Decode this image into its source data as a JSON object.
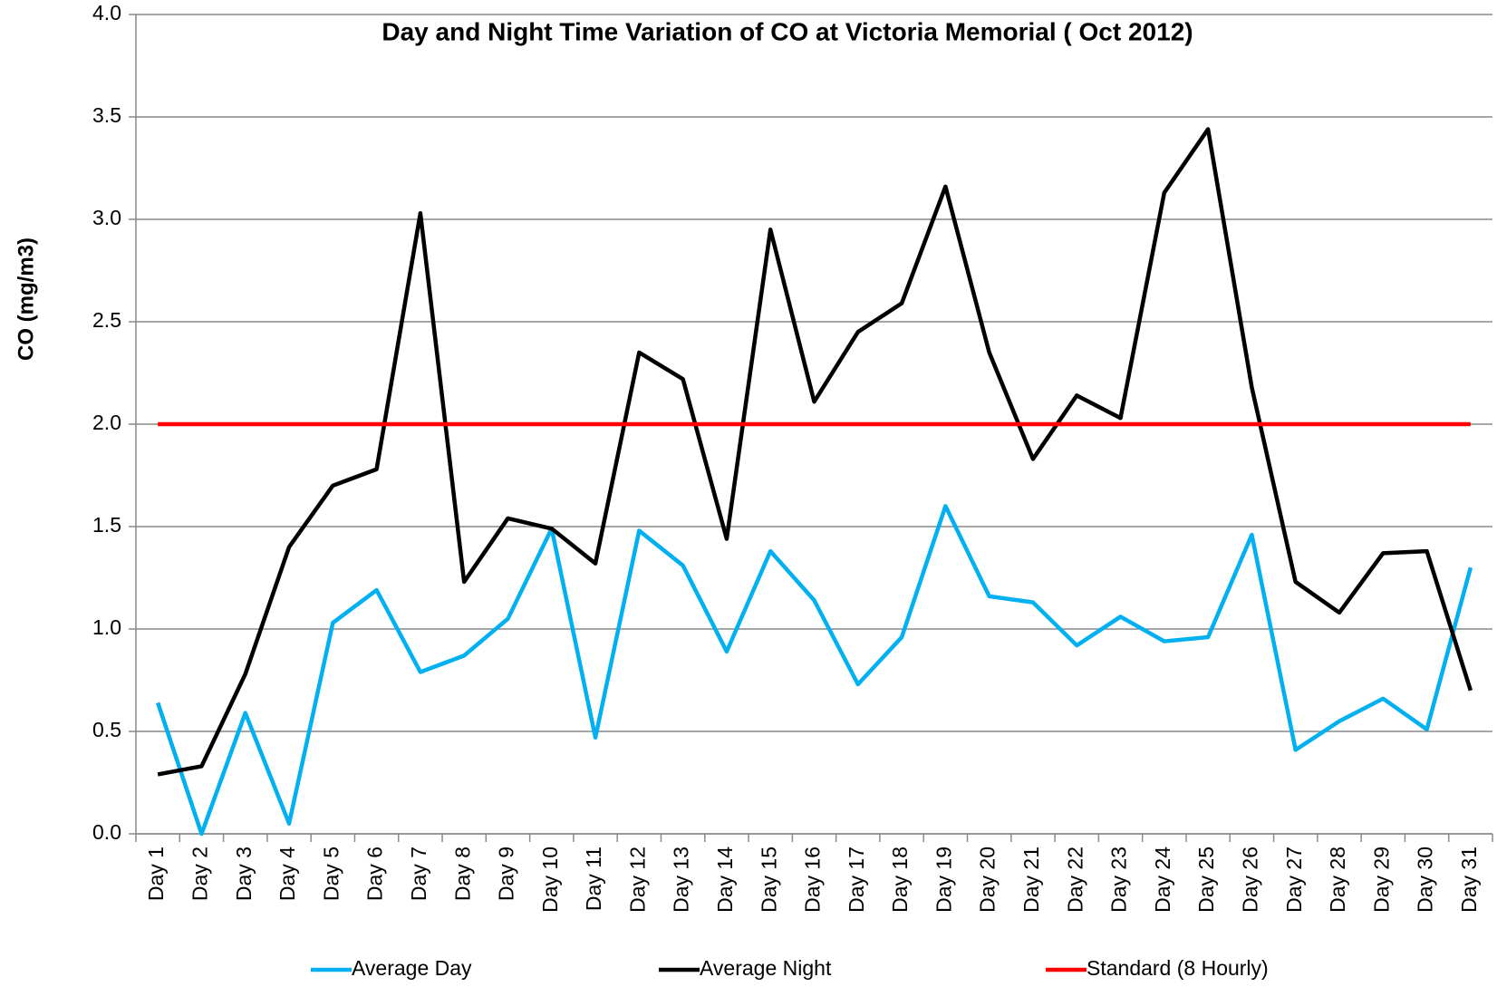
{
  "chart_data": {
    "type": "line",
    "title": "Day and Night Time Variation of CO at Victoria Memorial ( Oct 2012)",
    "y_label": "CO (mg/m3)",
    "categories": [
      "Day 1",
      "Day 2",
      "Day 3",
      "Day 4",
      "Day 5",
      "Day 6",
      "Day 7",
      "Day 8",
      "Day 9",
      "Day 10",
      "Day 11",
      "Day 12",
      "Day 13",
      "Day 14",
      "Day 15",
      "Day 16",
      "Day 17",
      "Day 18",
      "Day 19",
      "Day 20",
      "Day 21",
      "Day 22",
      "Day 23",
      "Day 24",
      "Day 25",
      "Day 26",
      "Day 27",
      "Day 28",
      "Day 29",
      "Day 30",
      "Day 31"
    ],
    "series": [
      {
        "name": "Average Day",
        "color": "#00b0f0",
        "values": [
          0.64,
          0,
          0.59,
          0.05,
          1.03,
          1.19,
          0.79,
          0.87,
          1.05,
          1.49,
          0.47,
          1.48,
          1.31,
          0.89,
          1.38,
          1.14,
          0.73,
          0.96,
          1.6,
          1.16,
          1.13,
          0.92,
          1.06,
          0.94,
          0.96,
          1.46,
          0.41,
          0.55,
          0.66,
          0.51,
          1.3
        ]
      },
      {
        "name": "Average Night",
        "color": "#000000",
        "values": [
          0.29,
          0.33,
          0.78,
          1.4,
          1.7,
          1.78,
          3.03,
          1.23,
          1.54,
          1.49,
          1.32,
          2.35,
          2.22,
          1.44,
          2.95,
          2.11,
          2.45,
          2.59,
          3.16,
          2.35,
          1.83,
          2.14,
          2.03,
          3.13,
          3.44,
          2.18,
          1.23,
          1.08,
          1.37,
          1.38,
          0.7
        ]
      },
      {
        "name": "Standard (8 Hourly)",
        "color": "#ff0000",
        "values": [
          2,
          2,
          2,
          2,
          2,
          2,
          2,
          2,
          2,
          2,
          2,
          2,
          2,
          2,
          2,
          2,
          2,
          2,
          2,
          2,
          2,
          2,
          2,
          2,
          2,
          2,
          2,
          2,
          2,
          2,
          2
        ]
      }
    ],
    "ylim": [
      0,
      4
    ],
    "yticks": [
      {
        "value": 0,
        "label": "0.0"
      },
      0.5,
      {
        "value": 1,
        "label": "1.0"
      },
      1.5,
      {
        "value": 2,
        "label": "2.0"
      },
      2.5,
      {
        "value": 3,
        "label": "3.0"
      },
      3.5,
      {
        "value": 4,
        "label": "4.0"
      }
    ],
    "grid": true,
    "legend": "bottom"
  }
}
